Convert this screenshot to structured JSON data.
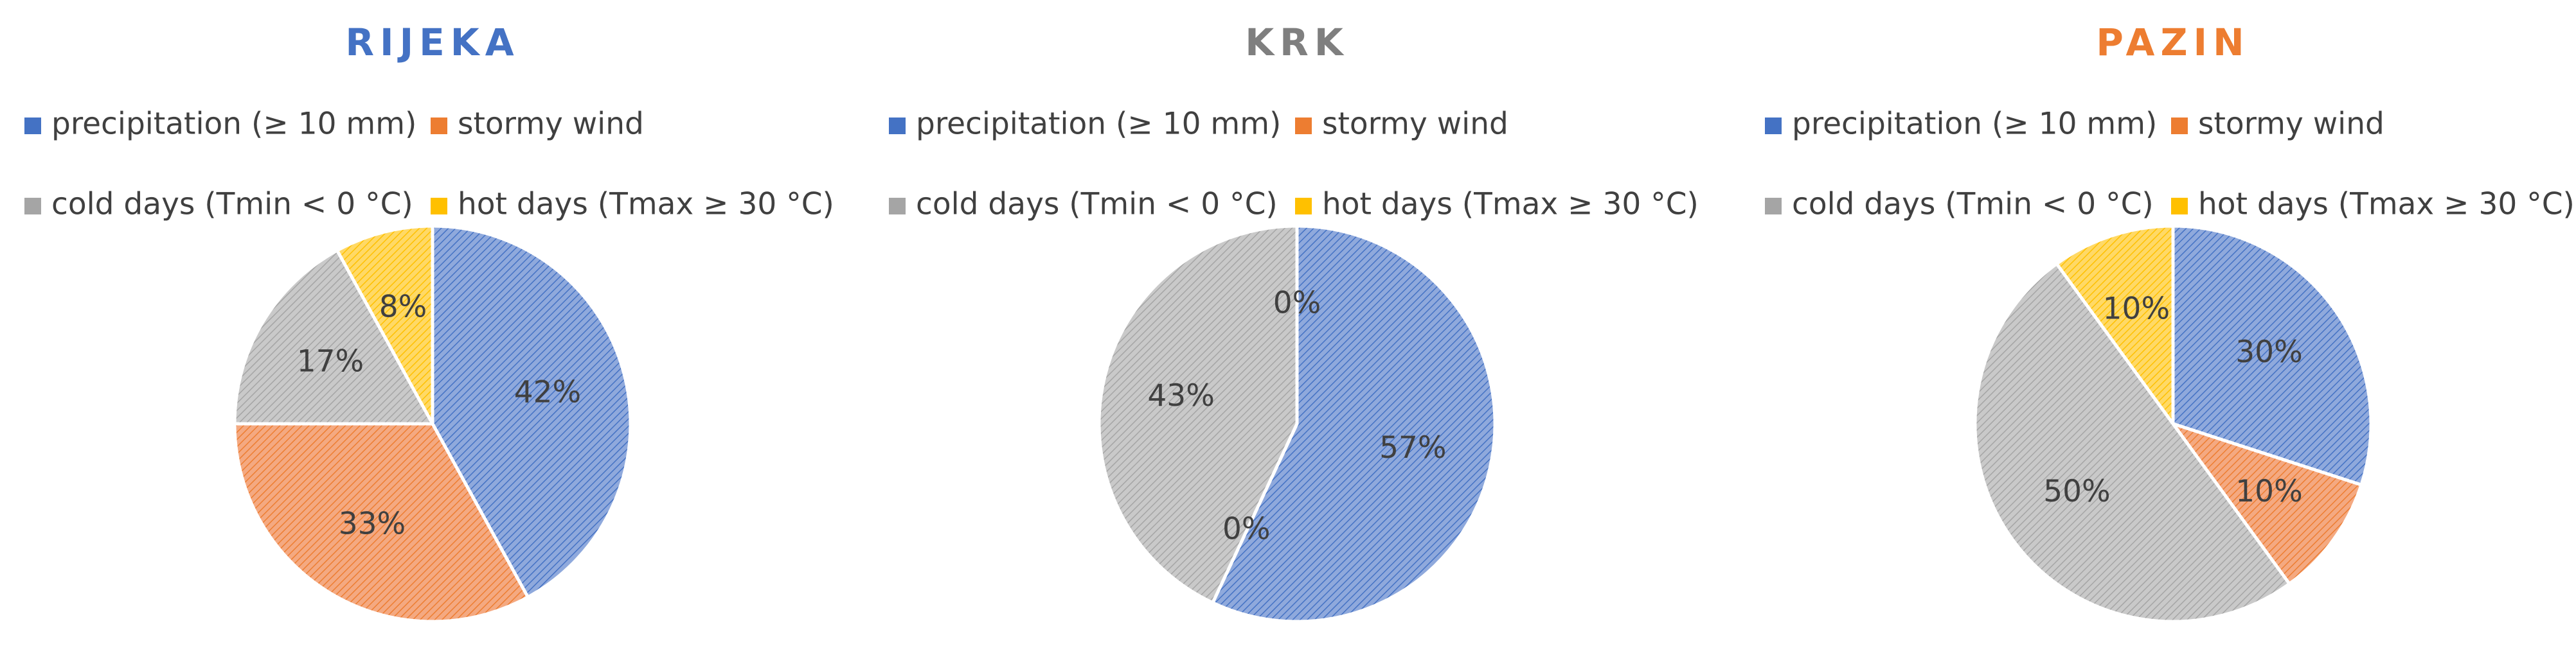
{
  "chart_data": [
    {
      "type": "pie",
      "title": "RIJEKA",
      "title_color": "#4472C4",
      "legend_placement": "top",
      "categories": [
        "precipitation (≥ 10 mm)",
        "stormy wind",
        "cold days (Tmin < 0 °C)",
        "hot days (Tmax ≥ 30 °C)"
      ],
      "values": [
        42,
        33,
        17,
        8
      ],
      "data_labels": [
        "42%",
        "33%",
        "17%",
        "8%"
      ]
    },
    {
      "type": "pie",
      "title": "KRK",
      "title_color": "#7F7F7F",
      "legend_placement": "top",
      "categories": [
        "precipitation (≥ 10 mm)",
        "stormy wind",
        "cold days (Tmin < 0 °C)",
        "hot days (Tmax ≥ 30 °C)"
      ],
      "values": [
        57,
        0,
        43,
        0
      ],
      "data_labels": [
        "57%",
        "0%",
        "43%",
        "0%"
      ]
    },
    {
      "type": "pie",
      "title": "PAZIN",
      "title_color": "#ED7D31",
      "legend_placement": "top",
      "categories": [
        "precipitation (≥ 10 mm)",
        "stormy wind",
        "cold days (Tmin < 0 °C)",
        "hot days (Tmax ≥ 30 °C)"
      ],
      "values": [
        30,
        10,
        50,
        10
      ],
      "data_labels": [
        "30%",
        "10%",
        "50%",
        "10%"
      ]
    }
  ],
  "colors": {
    "series": [
      "#4472C4",
      "#ED7D31",
      "#A5A5A5",
      "#FFC000"
    ],
    "series_fill": [
      "#8FA9DC",
      "#F4A981",
      "#C9C9C9",
      "#FFD966"
    ],
    "label_text": "#404040"
  }
}
